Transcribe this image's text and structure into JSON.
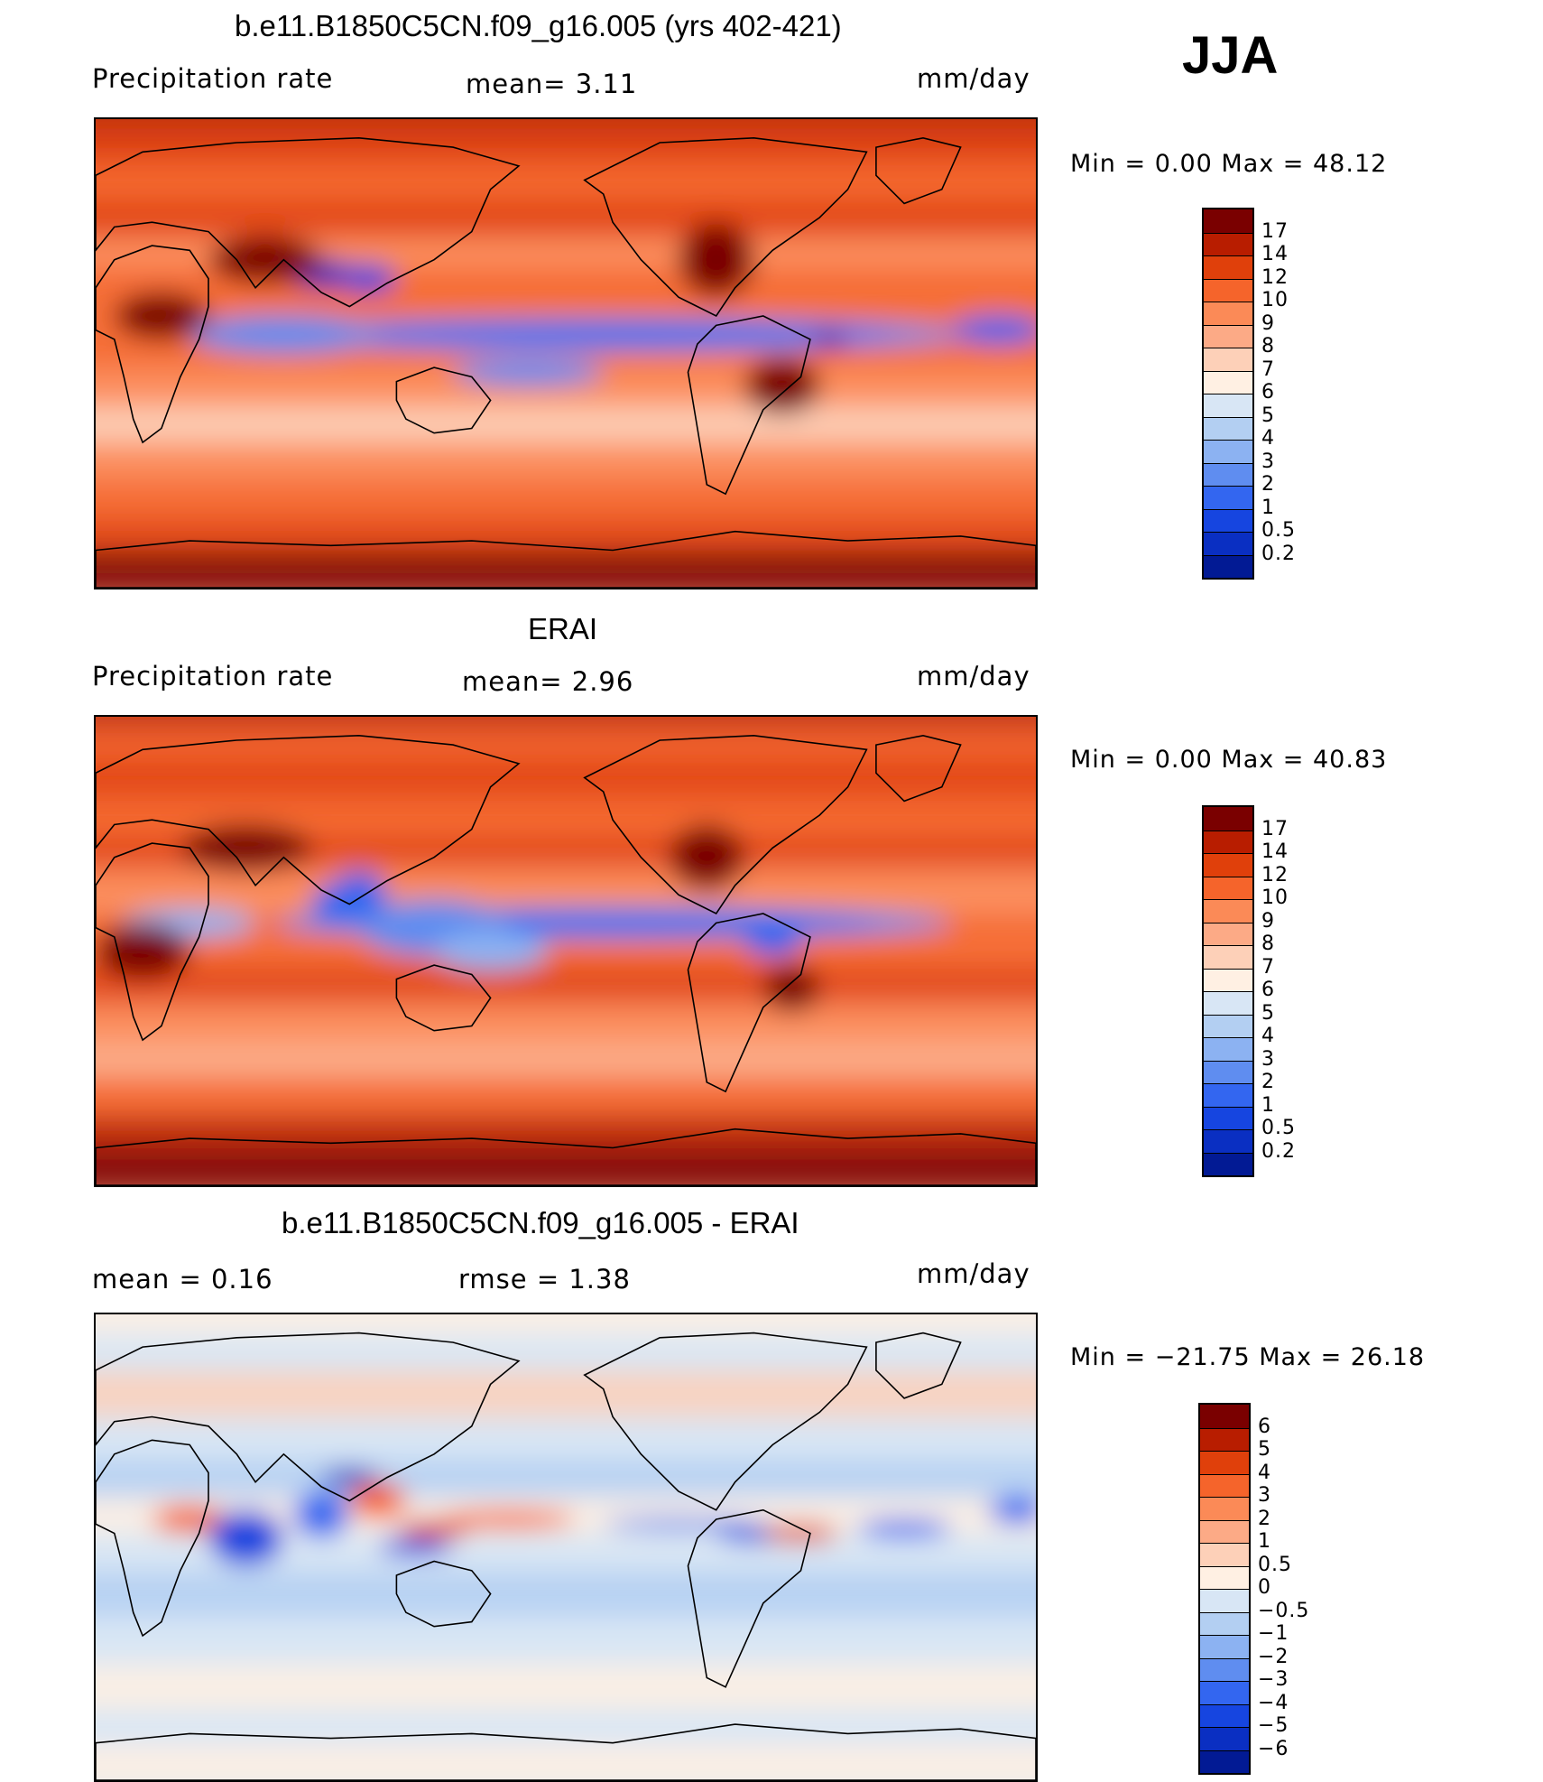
{
  "season_label": "JJA",
  "panels": [
    {
      "title": "b.e11.B1850C5CN.f09_g16.005 (yrs 402-421)",
      "left_text": "Precipitation  rate",
      "mid_text": "mean=    3.11",
      "right_text": "mm/day",
      "minmax": "Min  =      0.00  Max  =    48.12",
      "colorbar": {
        "labels": [
          "17",
          "14",
          "12",
          "10",
          "9",
          "8",
          "7",
          "6",
          "5",
          "4",
          "3",
          "2",
          "1",
          "0.5",
          "0.2"
        ],
        "colors": [
          "#7a0000",
          "#b81d00",
          "#e0400b",
          "#f5642b",
          "#fb8a57",
          "#fcaa86",
          "#fdd0b8",
          "#fff0e3",
          "#d8e6f5",
          "#b3cff2",
          "#8cb2f2",
          "#5f8df0",
          "#3366f0",
          "#1645e0",
          "#0a2fc2",
          "#021a94"
        ]
      },
      "chart_data": {
        "type": "heatmap",
        "title": "b.e11.B1850C5CN.f09_g16.005 (yrs 402-421)",
        "variable": "Precipitation  rate",
        "units": "mm/day",
        "mean": 3.11,
        "min": 0.0,
        "max": 48.12,
        "contour_levels": [
          0.2,
          0.5,
          1,
          2,
          3,
          4,
          5,
          6,
          7,
          8,
          9,
          10,
          12,
          14,
          17
        ]
      }
    },
    {
      "title": "ERAI",
      "left_text": "Precipitation  rate",
      "mid_text": "mean=    2.96",
      "right_text": "mm/day",
      "minmax": "Min  =      0.00  Max  =    40.83",
      "colorbar": {
        "labels": [
          "17",
          "14",
          "12",
          "10",
          "9",
          "8",
          "7",
          "6",
          "5",
          "4",
          "3",
          "2",
          "1",
          "0.5",
          "0.2"
        ],
        "colors": [
          "#7a0000",
          "#b81d00",
          "#e0400b",
          "#f5642b",
          "#fb8a57",
          "#fcaa86",
          "#fdd0b8",
          "#fff0e3",
          "#d8e6f5",
          "#b3cff2",
          "#8cb2f2",
          "#5f8df0",
          "#3366f0",
          "#1645e0",
          "#0a2fc2",
          "#021a94"
        ]
      },
      "chart_data": {
        "type": "heatmap",
        "title": "ERAI",
        "variable": "Precipitation  rate",
        "units": "mm/day",
        "mean": 2.96,
        "min": 0.0,
        "max": 40.83,
        "contour_levels": [
          0.2,
          0.5,
          1,
          2,
          3,
          4,
          5,
          6,
          7,
          8,
          9,
          10,
          12,
          14,
          17
        ]
      }
    },
    {
      "title": "b.e11.B1850C5CN.f09_g16.005 - ERAI",
      "left_text": "mean  =      0.16",
      "mid_text": "rmse  =      1.38",
      "right_text": "mm/day",
      "minmax": "Min  = −21.75  Max  =    26.18",
      "colorbar": {
        "labels": [
          "6",
          "5",
          "4",
          "3",
          "2",
          "1",
          "0.5",
          "0",
          "−0.5",
          "−1",
          "−2",
          "−3",
          "−4",
          "−5",
          "−6"
        ],
        "colors": [
          "#7a0000",
          "#b81d00",
          "#e0400b",
          "#f5642b",
          "#fb8a57",
          "#fcaa86",
          "#fdd0b8",
          "#fff0e3",
          "#d8e6f5",
          "#b3cff2",
          "#8cb2f2",
          "#5f8df0",
          "#3366f0",
          "#1645e0",
          "#0a2fc2",
          "#021a94"
        ]
      },
      "chart_data": {
        "type": "heatmap",
        "title": "b.e11.B1850C5CN.f09_g16.005 - ERAI",
        "units": "mm/day",
        "mean": 0.16,
        "rmse": 1.38,
        "min": -21.75,
        "max": 26.18,
        "contour_levels": [
          -6,
          -5,
          -4,
          -3,
          -2,
          -1,
          -0.5,
          0,
          0.5,
          1,
          2,
          3,
          4,
          5,
          6
        ]
      }
    }
  ]
}
